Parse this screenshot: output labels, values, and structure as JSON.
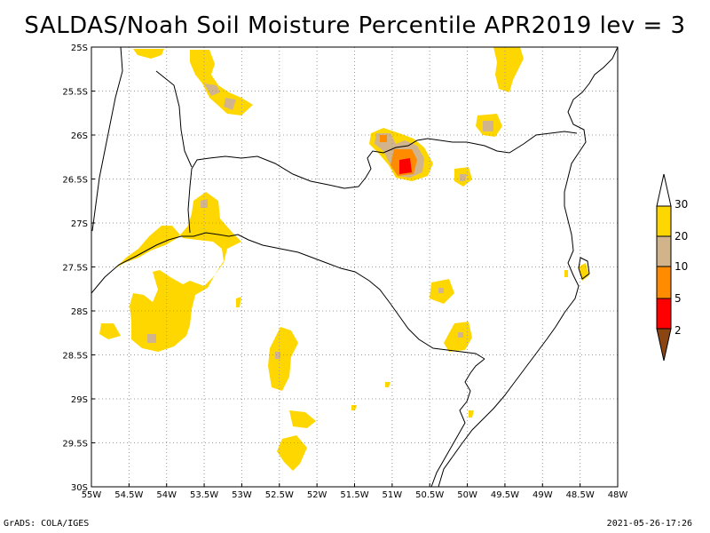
{
  "title": "SALDAS/Noah Soil Moisture Percentile APR2019 lev = 3",
  "footer": {
    "left": "GrADS: COLA/IGES",
    "right": "2021-05-26-17:26"
  },
  "colors": {
    "p2": "#8b4513",
    "p5": "#ff0000",
    "p10": "#ff8c00",
    "p20": "#d2b48c",
    "p30": "#ffd700",
    "above": "#ffffff",
    "grid": "#999999",
    "boundary": "#000000"
  },
  "map": {
    "lon_range": [
      -55,
      -48
    ],
    "lat_range": [
      -30,
      -25
    ],
    "x_ticks": [
      "55W",
      "54.5W",
      "54W",
      "53.5W",
      "53W",
      "52.5W",
      "52W",
      "51.5W",
      "51W",
      "50.5W",
      "50W",
      "49.5W",
      "49W",
      "48.5W",
      "48W"
    ],
    "y_ticks": [
      "25S",
      "25.5S",
      "26S",
      "26.5S",
      "27S",
      "27.5S",
      "28S",
      "28.5S",
      "29S",
      "29.5S",
      "30S"
    ]
  },
  "colorbar": {
    "labels": [
      "2",
      "5",
      "10",
      "20",
      "30"
    ]
  }
}
